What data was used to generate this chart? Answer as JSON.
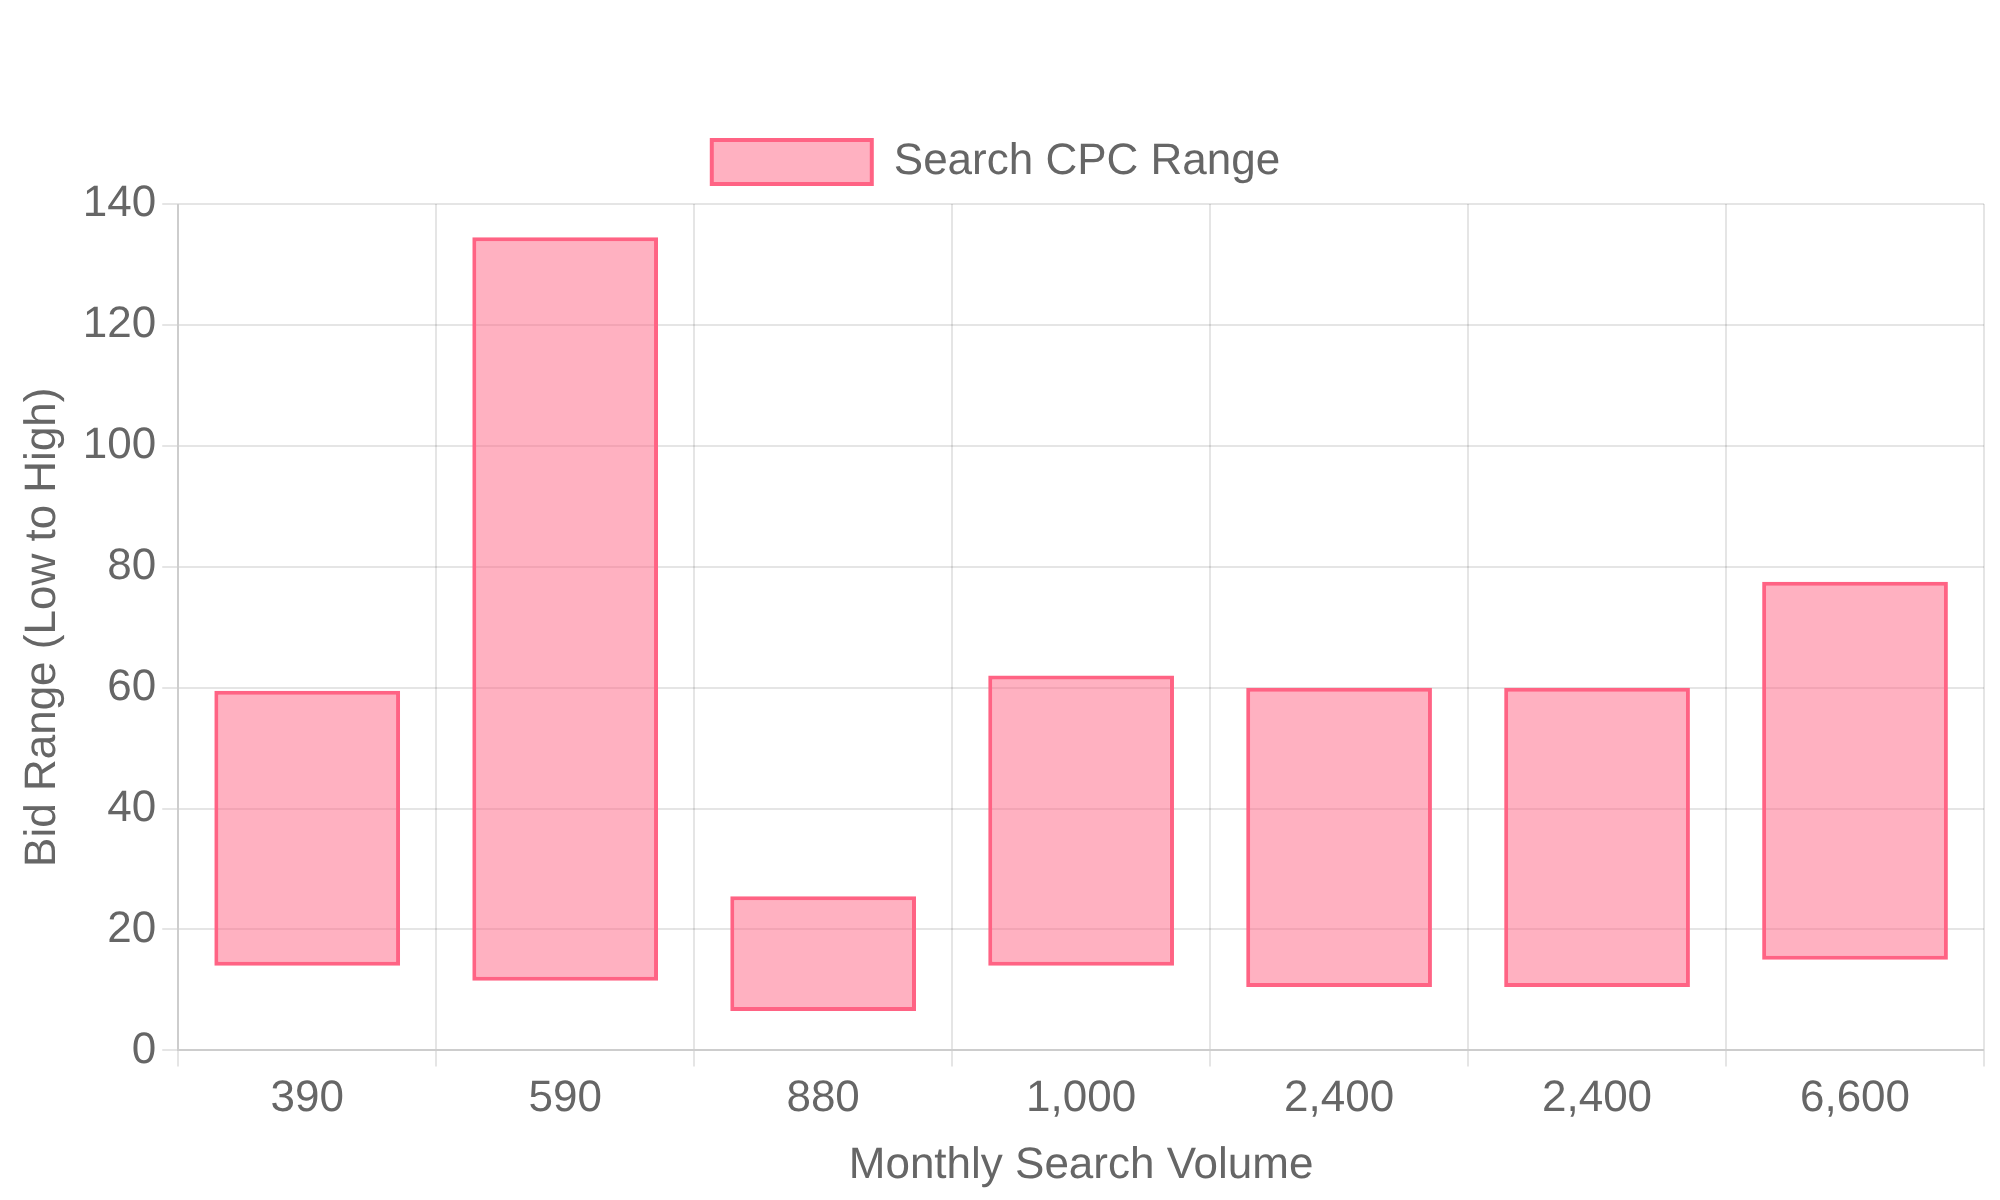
{
  "chart_data": {
    "type": "bar",
    "xlabel": "Monthly Search Volume",
    "ylabel": "Bid Range (Low to High)",
    "categories": [
      "390",
      "590",
      "880",
      "1,000",
      "2,400",
      "2,400",
      "6,600"
    ],
    "series": [
      {
        "name": "Search CPC Range",
        "color": "#ff6384",
        "values": [
          45.5,
          123,
          19,
          48,
          49.5,
          49.5,
          62.5
        ],
        "base": [
          14,
          11.5,
          6.5,
          14,
          10.5,
          10.5,
          15
        ]
      }
    ],
    "ylim": [
      0,
      140
    ],
    "yticks": [
      0,
      20,
      40,
      60,
      80,
      100,
      120,
      140
    ],
    "grid": true,
    "legend": "top"
  }
}
